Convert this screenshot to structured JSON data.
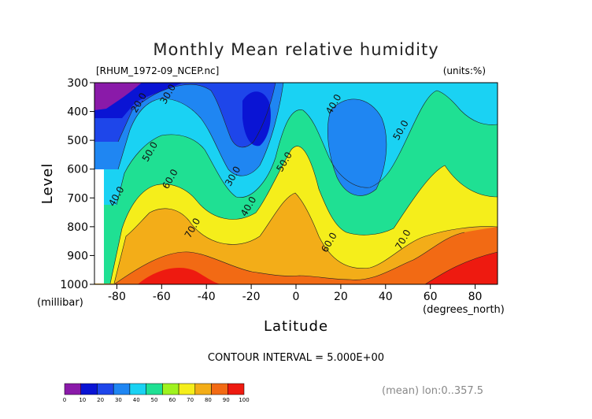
{
  "chart_data": {
    "type": "heatmap",
    "title": "Monthly Mean relative humidity",
    "file_label": "[RHUM_1972-09_NCEP.nc]",
    "units_label": "(units:%)",
    "xlabel": "Latitude",
    "x_unit_label": "(degrees_north)",
    "ylabel": "Level",
    "y_unit_label": "(millibar)",
    "xlim": [
      -90,
      90
    ],
    "ylim": [
      1000,
      300
    ],
    "x_ticks": [
      -80,
      -60,
      -40,
      -20,
      0,
      20,
      40,
      60,
      80
    ],
    "y_ticks": [
      300,
      400,
      500,
      600,
      700,
      800,
      900,
      1000
    ],
    "contour_interval_label": "CONTOUR INTERVAL = 5.000E+00",
    "mean_label": "(mean) lon:0..357.5",
    "contour_labels": [
      {
        "text": "20.0",
        "lat": -69,
        "level": 375
      },
      {
        "text": "30.0",
        "lat": -56,
        "level": 345
      },
      {
        "text": "50.0",
        "lat": -64,
        "level": 545
      },
      {
        "text": "40.0",
        "lat": -79,
        "level": 700
      },
      {
        "text": "60.0",
        "lat": -55,
        "level": 640
      },
      {
        "text": "70.0",
        "lat": -45,
        "level": 810
      },
      {
        "text": "30.0",
        "lat": -27,
        "level": 630
      },
      {
        "text": "40.0",
        "lat": -20,
        "level": 735
      },
      {
        "text": "50.0",
        "lat": -4,
        "level": 580
      },
      {
        "text": "40.0",
        "lat": 18,
        "level": 380
      },
      {
        "text": "50.0",
        "lat": 48,
        "level": 470
      },
      {
        "text": "60.0",
        "lat": 16,
        "level": 860
      },
      {
        "text": "70.0",
        "lat": 49,
        "level": 850
      }
    ],
    "colorbar": {
      "ticks": [
        "0",
        "10",
        "20",
        "30",
        "40",
        "50",
        "60",
        "70",
        "80",
        "90",
        "100"
      ],
      "colors": [
        "#8a1aa9",
        "#0a14d4",
        "#1e46ea",
        "#1f86f2",
        "#1ad2f3",
        "#1fe093",
        "#9ff21f",
        "#f5ee1b",
        "#f3ad18",
        "#f26a14",
        "#ee1a10"
      ]
    },
    "grid": false
  }
}
